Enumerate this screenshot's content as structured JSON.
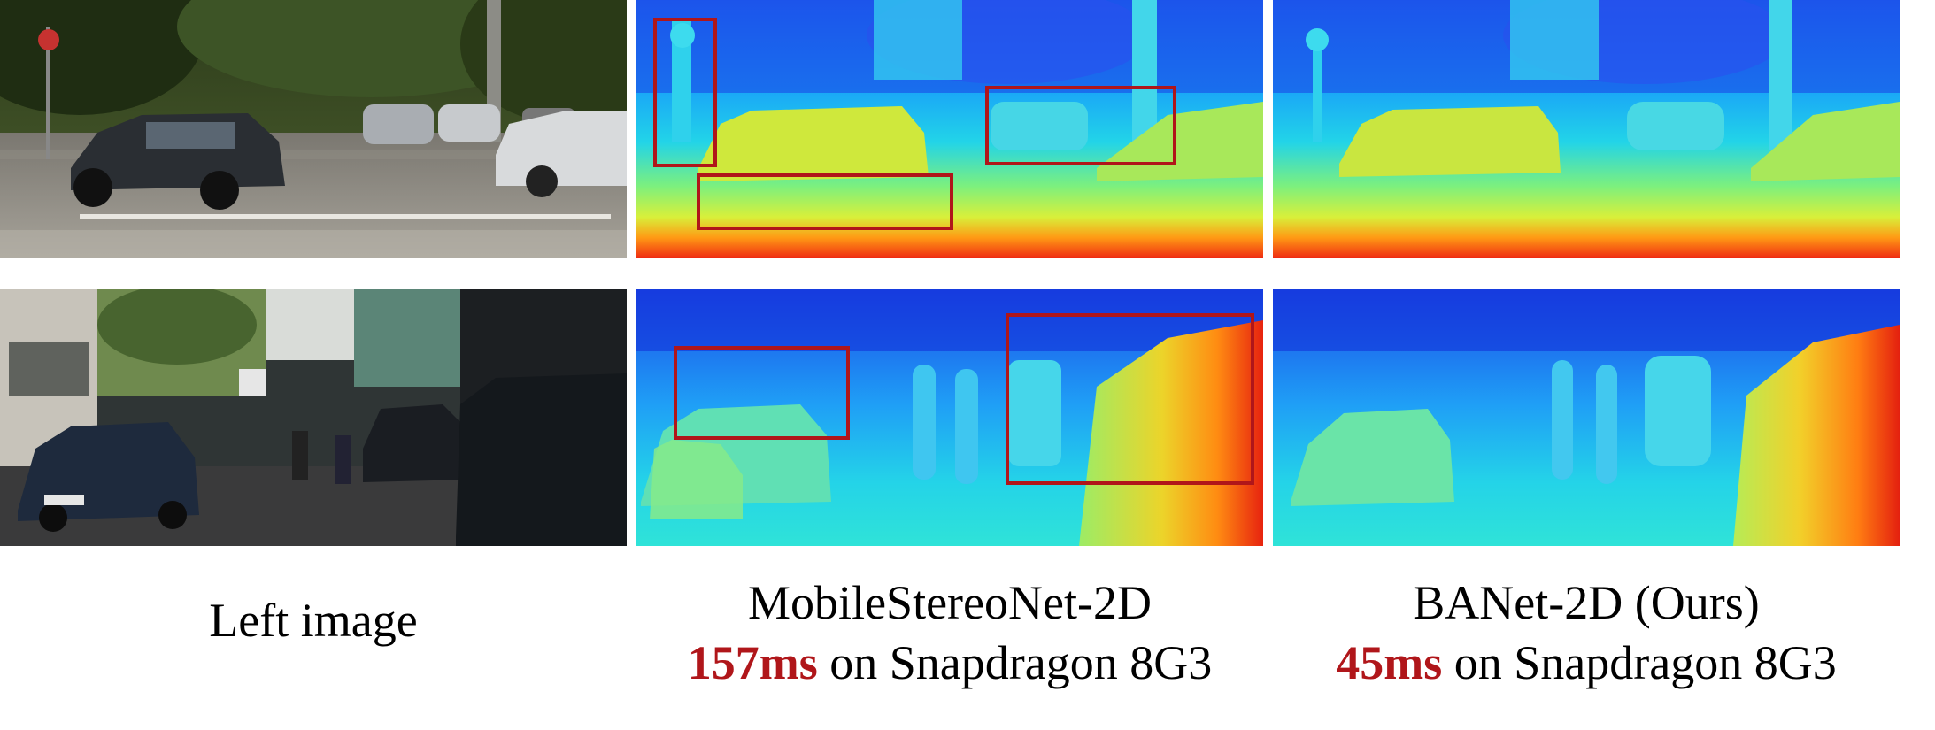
{
  "figure": {
    "columns": [
      {
        "label": "Left image"
      },
      {
        "label": "MobileStereoNet-2D",
        "latency": "157ms",
        "device_text": " on Snapdragon 8G3"
      },
      {
        "label": "BANet-2D (Ours)",
        "latency": "45ms",
        "device_text": " on Snapdragon 8G3"
      }
    ],
    "colors": {
      "latency_highlight": "#b0161a",
      "highlight_box": "#b0161a",
      "colormap": "jet"
    }
  }
}
